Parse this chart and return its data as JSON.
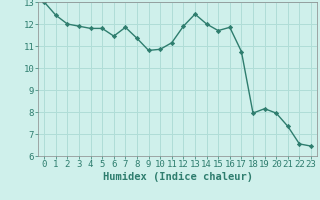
{
  "x": [
    0,
    1,
    2,
    3,
    4,
    5,
    6,
    7,
    8,
    9,
    10,
    11,
    12,
    13,
    14,
    15,
    16,
    17,
    18,
    19,
    20,
    21,
    22,
    23
  ],
  "y": [
    13.0,
    12.4,
    12.0,
    11.9,
    11.8,
    11.8,
    11.45,
    11.85,
    11.35,
    10.8,
    10.85,
    11.15,
    11.9,
    12.45,
    12.0,
    11.7,
    11.85,
    10.75,
    7.95,
    8.15,
    7.95,
    7.35,
    6.55,
    6.45
  ],
  "line_color": "#2e7d6e",
  "marker": "D",
  "marker_size": 2.2,
  "bg_color": "#cff0eb",
  "grid_color": "#b0ddd7",
  "xlabel": "Humidex (Indice chaleur)",
  "xlim": [
    -0.5,
    23.5
  ],
  "ylim": [
    6,
    13
  ],
  "yticks": [
    6,
    7,
    8,
    9,
    10,
    11,
    12,
    13
  ],
  "xticks": [
    0,
    1,
    2,
    3,
    4,
    5,
    6,
    7,
    8,
    9,
    10,
    11,
    12,
    13,
    14,
    15,
    16,
    17,
    18,
    19,
    20,
    21,
    22,
    23
  ],
  "xlabel_fontsize": 7.5,
  "tick_fontsize": 6.5,
  "line_width": 1.0
}
